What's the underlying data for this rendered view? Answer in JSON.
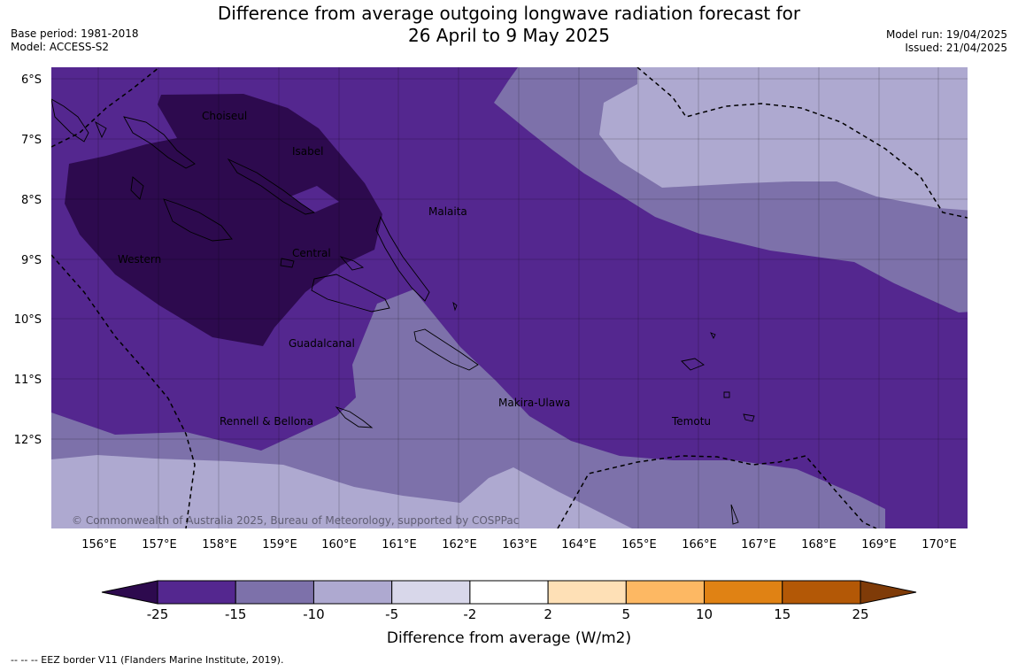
{
  "title_line1": "Difference from average outgoing longwave radiation forecast for",
  "title_line2": "26 April to 9 May 2025",
  "base_period": "Base period: 1981-2018",
  "model": "Model: ACCESS-S2",
  "model_run": "Model run: 19/04/2025",
  "issued": "Issued: 21/04/2025",
  "copyright": "© Commonwealth of Australia 2025, Bureau of Meteorology, supported by COSPPac",
  "lat_labels": [
    "6°S",
    "7°S",
    "8°S",
    "9°S",
    "10°S",
    "11°S",
    "12°S"
  ],
  "lon_labels": [
    "156°E",
    "157°E",
    "158°E",
    "159°E",
    "160°E",
    "161°E",
    "162°E",
    "163°E",
    "164°E",
    "165°E",
    "166°E",
    "167°E",
    "168°E",
    "169°E",
    "170°E"
  ],
  "provinces": [
    "Choiseul",
    "Isabel",
    "Malaita",
    "Western",
    "Central",
    "Guadalcanal",
    "Makira-Ulawa",
    "Rennell & Bellona",
    "Temotu"
  ],
  "colorbar": {
    "label": "Difference from average (W/m2)",
    "ticks": [
      "-25",
      "-15",
      "-10",
      "-5",
      "-2",
      "2",
      "5",
      "10",
      "15",
      "25"
    ],
    "colors": [
      "#2d0a4e",
      "#54278f",
      "#7d71aa",
      "#aea9d0",
      "#d8d7ea",
      "#ffffff",
      "#fee0b6",
      "#fdb863",
      "#e08214",
      "#b35806",
      "#7f3b08"
    ]
  },
  "footnote": "--  --  -- EEZ border V11 (Flanders Marine Institute, 2019)."
}
